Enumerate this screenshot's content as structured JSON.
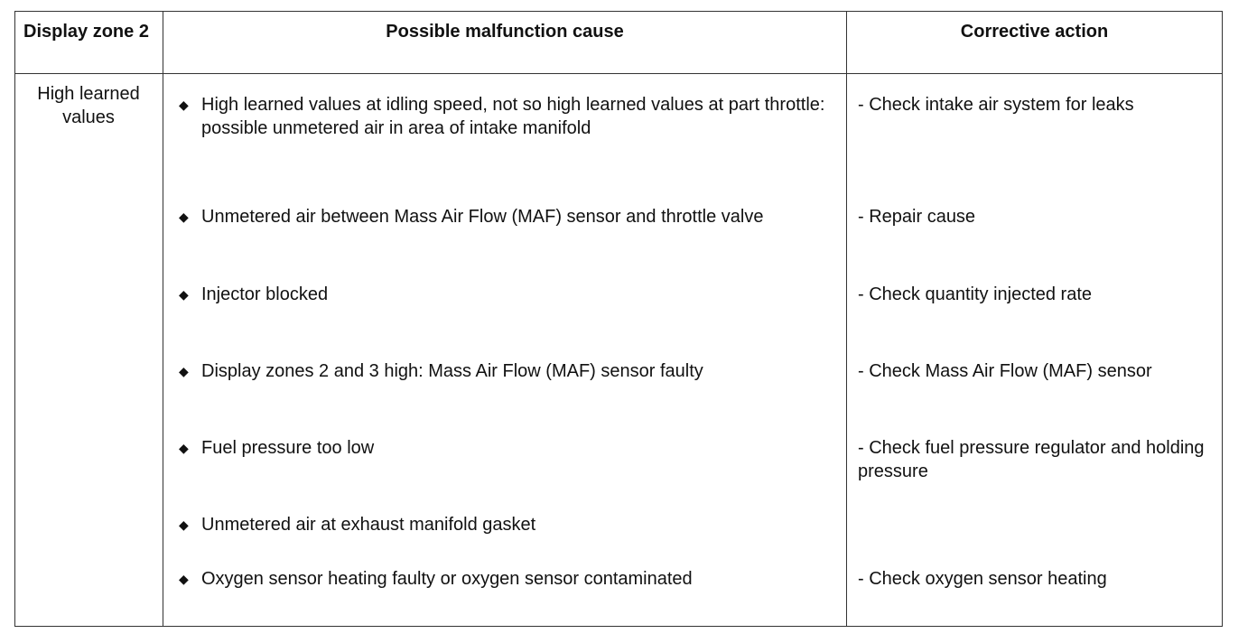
{
  "table": {
    "headers": [
      "Display zone 2",
      "Possible malfunction cause",
      "Corrective action"
    ],
    "zone": "High learned values",
    "bullet_icon": "diamond-bullet",
    "rows": [
      {
        "cause": "High learned values at idling speed, not so high learned values at part throttle: possible unmetered air in area of intake manifold",
        "action": "- Check intake air system for leaks"
      },
      {
        "cause": "Unmetered air between Mass Air Flow (MAF) sensor and throttle valve",
        "action": "- Repair cause"
      },
      {
        "cause": "Injector blocked",
        "action": "- Check quantity injected rate"
      },
      {
        "cause": "Display zones 2 and 3 high: Mass Air Flow (MAF) sensor faulty",
        "action": "- Check Mass Air Flow (MAF) sensor"
      },
      {
        "cause": "Fuel pressure too low",
        "action": "- Check fuel pressure regulator and holding pressure"
      },
      {
        "cause": "Unmetered air at exhaust manifold gasket",
        "action": ""
      },
      {
        "cause": "Oxygen sensor heating faulty or oxygen sensor contaminated",
        "action": "- Check oxygen sensor heating"
      }
    ]
  }
}
